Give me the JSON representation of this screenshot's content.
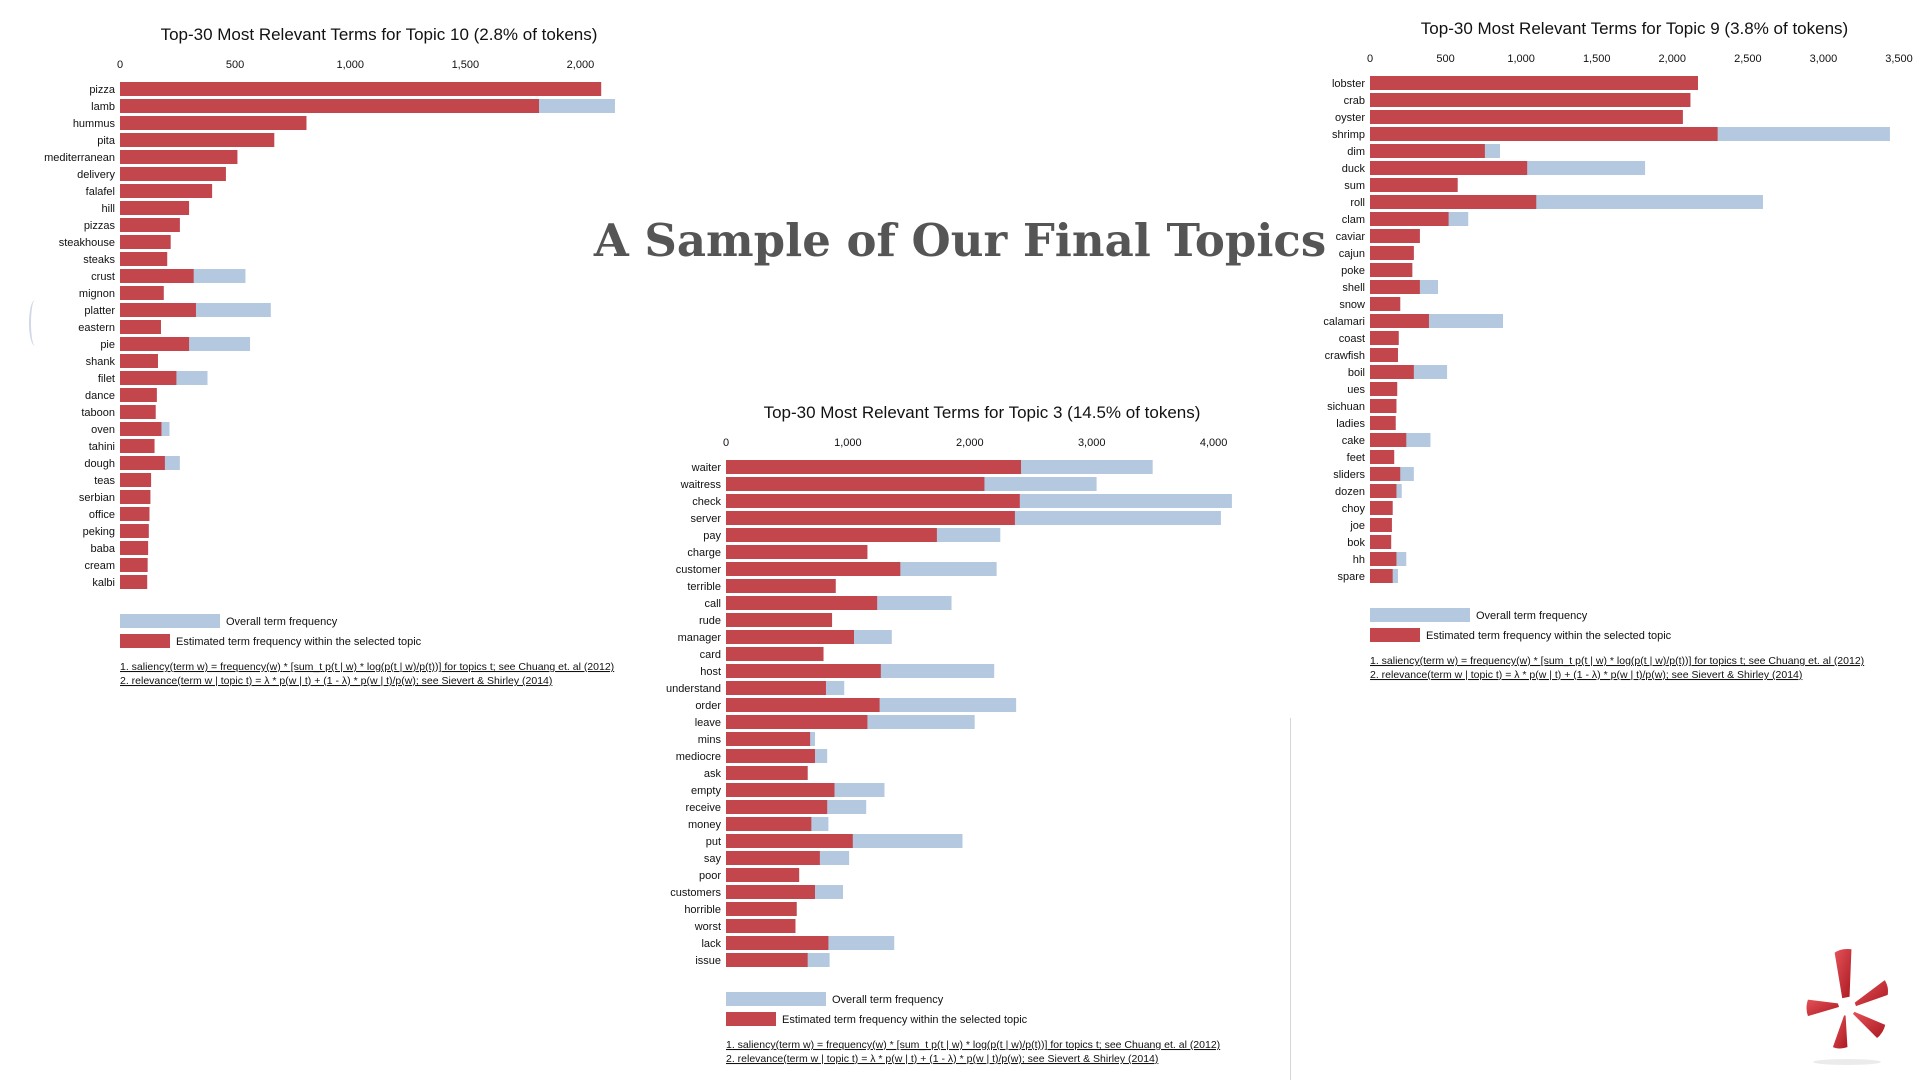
{
  "slide": {
    "title": "A Sample of Our Final Topics"
  },
  "colors": {
    "overall": "#b4c8e0",
    "estimated": "#c4464d"
  },
  "legend": {
    "overall": "Overall term frequency",
    "estimated": "Estimated term frequency within the selected topic"
  },
  "notes": {
    "saliency": "1. saliency(term w) = frequency(w) * [sum_t p(t | w) * log(p(t | w)/p(t))] for topics t; see Chuang et. al (2012)",
    "relevance": "2. relevance(term w | topic t) = λ * p(w | t) + (1 - λ) * p(w | t)/p(w); see Sievert & Shirley (2014)"
  },
  "chart_data": [
    {
      "type": "bar",
      "orientation": "horizontal",
      "title": "Top-30 Most Relevant Terms for Topic 10 (2.8% of tokens)",
      "xlim": [
        0,
        2250
      ],
      "ticks": [
        0,
        500,
        1000,
        1500,
        2000
      ],
      "tick_labels": [
        "0",
        "500",
        "1,000",
        "1,500",
        "2,000"
      ],
      "categories": [
        "pizza",
        "lamb",
        "hummus",
        "pita",
        "mediterranean",
        "delivery",
        "falafel",
        "hill",
        "pizzas",
        "steakhouse",
        "steaks",
        "crust",
        "mignon",
        "platter",
        "eastern",
        "pie",
        "shank",
        "filet",
        "dance",
        "taboon",
        "oven",
        "tahini",
        "dough",
        "teas",
        "serbian",
        "office",
        "peking",
        "baba",
        "cream",
        "kalbi"
      ],
      "series": [
        {
          "name": "Overall term frequency",
          "values": [
            2090,
            2150,
            810,
            670,
            510,
            460,
            400,
            300,
            260,
            220,
            205,
            545,
            190,
            655,
            178,
            565,
            165,
            380,
            160,
            155,
            215,
            150,
            260,
            135,
            132,
            128,
            125,
            122,
            120,
            118
          ]
        },
        {
          "name": "Estimated term frequency within the selected topic",
          "values": [
            2090,
            1820,
            810,
            670,
            510,
            460,
            400,
            300,
            260,
            220,
            205,
            320,
            190,
            330,
            178,
            300,
            165,
            245,
            160,
            155,
            180,
            150,
            195,
            135,
            132,
            128,
            125,
            122,
            120,
            118
          ]
        }
      ]
    },
    {
      "type": "bar",
      "orientation": "horizontal",
      "title": "Top-30 Most Relevant Terms for Topic 9 (3.8% of tokens)",
      "xlim": [
        0,
        3500
      ],
      "ticks": [
        0,
        500,
        1000,
        1500,
        2000,
        2500,
        3000,
        3500
      ],
      "tick_labels": [
        "0",
        "500",
        "1,000",
        "1,500",
        "2,000",
        "2,500",
        "3,000",
        "3,500"
      ],
      "categories": [
        "lobster",
        "crab",
        "oyster",
        "shrimp",
        "dim",
        "duck",
        "sum",
        "roll",
        "clam",
        "caviar",
        "cajun",
        "poke",
        "shell",
        "snow",
        "calamari",
        "coast",
        "crawfish",
        "boil",
        "ues",
        "sichuan",
        "ladies",
        "cake",
        "feet",
        "sliders",
        "dozen",
        "choy",
        "joe",
        "bok",
        "hh",
        "spare"
      ],
      "series": [
        {
          "name": "Overall term frequency",
          "values": [
            2170,
            2120,
            2070,
            3440,
            860,
            1820,
            580,
            2600,
            650,
            330,
            290,
            280,
            450,
            200,
            880,
            190,
            185,
            510,
            180,
            175,
            170,
            400,
            160,
            290,
            210,
            150,
            145,
            140,
            240,
            185
          ]
        },
        {
          "name": "Estimated term frequency within the selected topic",
          "values": [
            2170,
            2120,
            2070,
            2300,
            760,
            1040,
            580,
            1100,
            520,
            330,
            290,
            280,
            330,
            200,
            390,
            190,
            185,
            290,
            180,
            175,
            170,
            240,
            160,
            200,
            175,
            150,
            145,
            140,
            175,
            150
          ]
        }
      ]
    },
    {
      "type": "bar",
      "orientation": "horizontal",
      "title": "Top-30 Most Relevant Terms for Topic 3 (14.5% of tokens)",
      "xlim": [
        0,
        4200
      ],
      "ticks": [
        0,
        1000,
        2000,
        3000,
        4000
      ],
      "tick_labels": [
        "0",
        "1,000",
        "2,000",
        "3,000",
        "4,000"
      ],
      "categories": [
        "waiter",
        "waitress",
        "check",
        "server",
        "pay",
        "charge",
        "customer",
        "terrible",
        "call",
        "rude",
        "manager",
        "card",
        "host",
        "understand",
        "order",
        "leave",
        "mins",
        "mediocre",
        "ask",
        "empty",
        "receive",
        "money",
        "put",
        "say",
        "poor",
        "customers",
        "horrible",
        "worst",
        "lack",
        "issue"
      ],
      "series": [
        {
          "name": "Overall term frequency",
          "values": [
            3500,
            3040,
            4150,
            4060,
            2250,
            1160,
            2220,
            900,
            1850,
            870,
            1360,
            800,
            2200,
            970,
            2380,
            2040,
            730,
            830,
            670,
            1300,
            1150,
            840,
            1940,
            1010,
            600,
            960,
            580,
            570,
            1380,
            850
          ]
        },
        {
          "name": "Estimated term frequency within the selected topic",
          "values": [
            2420,
            2120,
            2410,
            2370,
            1730,
            1160,
            1430,
            900,
            1240,
            870,
            1050,
            800,
            1270,
            820,
            1260,
            1160,
            690,
            730,
            670,
            890,
            830,
            700,
            1040,
            770,
            600,
            730,
            580,
            570,
            840,
            670
          ]
        }
      ]
    }
  ]
}
